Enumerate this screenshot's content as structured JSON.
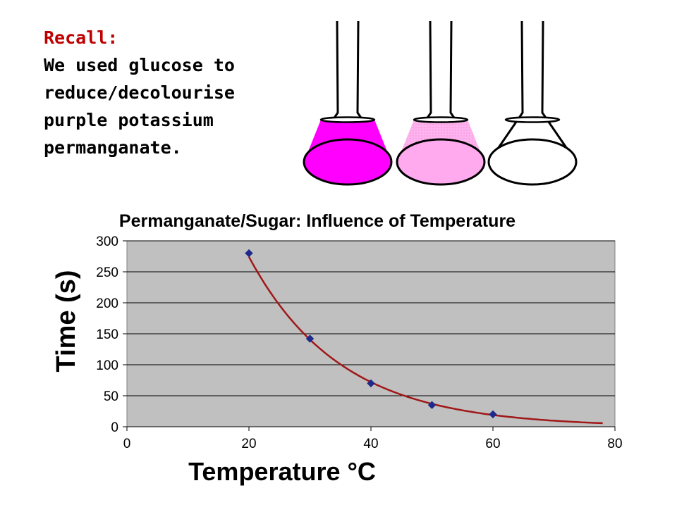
{
  "intro": {
    "heading": "Recall:",
    "lines": [
      "We used glucose to",
      "reduce/decolourise",
      "purple potassium",
      "permanganate."
    ]
  },
  "flasks": [
    {
      "fill_color": "#ff00ff",
      "shading": "solid"
    },
    {
      "fill_color": "#ffaaee",
      "shading": "light"
    },
    {
      "fill_color": "#ffffff",
      "shading": "clear"
    }
  ],
  "colors": {
    "plot_background": "#c0c0c0",
    "marker": "#1f2a8a",
    "trendline": "#a01818",
    "text": "#000000"
  },
  "chart_data": {
    "type": "scatter",
    "title": "Permanganate/Sugar: Influence of Temperature",
    "xlabel": "Temperature °C",
    "ylabel": "Time (s)",
    "xlim": [
      0,
      80
    ],
    "ylim": [
      0,
      300
    ],
    "xticks": [
      0,
      20,
      40,
      60,
      80
    ],
    "yticks": [
      0,
      50,
      100,
      150,
      200,
      250,
      300
    ],
    "grid": "horizontal",
    "legend": "none",
    "series": [
      {
        "x": [
          20,
          30,
          40,
          50,
          60
        ],
        "y": [
          280,
          142,
          70,
          35,
          20
        ]
      }
    ],
    "trendline": {
      "type": "exponential",
      "x_range": [
        20,
        78
      ]
    }
  }
}
